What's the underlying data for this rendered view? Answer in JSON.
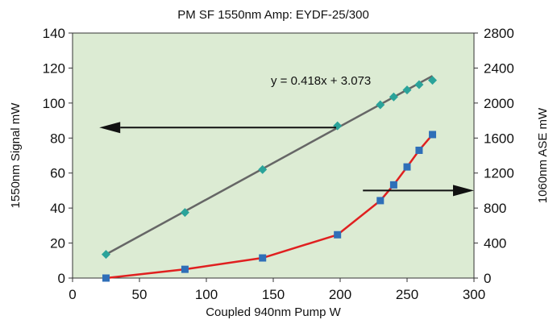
{
  "chart_data": {
    "type": "scatter",
    "title": "PM SF 1550nm Amp: EYDF-25/300",
    "xlabel": "Coupled 940nm Pump W",
    "ylabel_left": "1550nm Signal mW",
    "ylabel_right": "1060nm ASE mW",
    "xlim": [
      0,
      300
    ],
    "ylim_left": [
      0,
      140
    ],
    "ylim_right": [
      0,
      2800
    ],
    "x_ticks": [
      "0",
      "50",
      "100",
      "150",
      "200",
      "250",
      "300"
    ],
    "y_left_ticks": [
      "0",
      "20",
      "40",
      "60",
      "80",
      "100",
      "120",
      "140"
    ],
    "y_right_ticks": [
      "0",
      "400",
      "800",
      "1200",
      "1600",
      "2000",
      "2400",
      "2800"
    ],
    "grid": false,
    "background_color": "#dcebd3",
    "series": [
      {
        "axis": "left",
        "marker": "diamond",
        "marker_color": "#2aa39a",
        "x": [
          25,
          84,
          142,
          198,
          230,
          240,
          250,
          259,
          269
        ],
        "y": [
          13.5,
          37.5,
          62,
          87,
          99,
          103.5,
          107.5,
          110.5,
          113
        ]
      },
      {
        "axis": "right",
        "marker": "square",
        "marker_color": "#2f6fb8",
        "line_color": "#e02020",
        "x": [
          25,
          84,
          142,
          198,
          230,
          240,
          250,
          259,
          269
        ],
        "y": [
          0,
          100,
          230,
          495,
          885,
          1065,
          1270,
          1460,
          1640
        ]
      }
    ],
    "trendline": {
      "series_index": 0,
      "equation": "y = 0.418x + 3.073",
      "slope": 0.418,
      "intercept": 3.073,
      "x_range": [
        25,
        269
      ],
      "color": "#666666"
    },
    "arrows": [
      {
        "points_to": "left-axis",
        "x_from": 197,
        "x_to": 20,
        "y": 86,
        "axis": "left"
      },
      {
        "points_to": "right-axis",
        "x_from": 217,
        "x_to": 300,
        "y": 1000,
        "axis": "right"
      }
    ]
  }
}
